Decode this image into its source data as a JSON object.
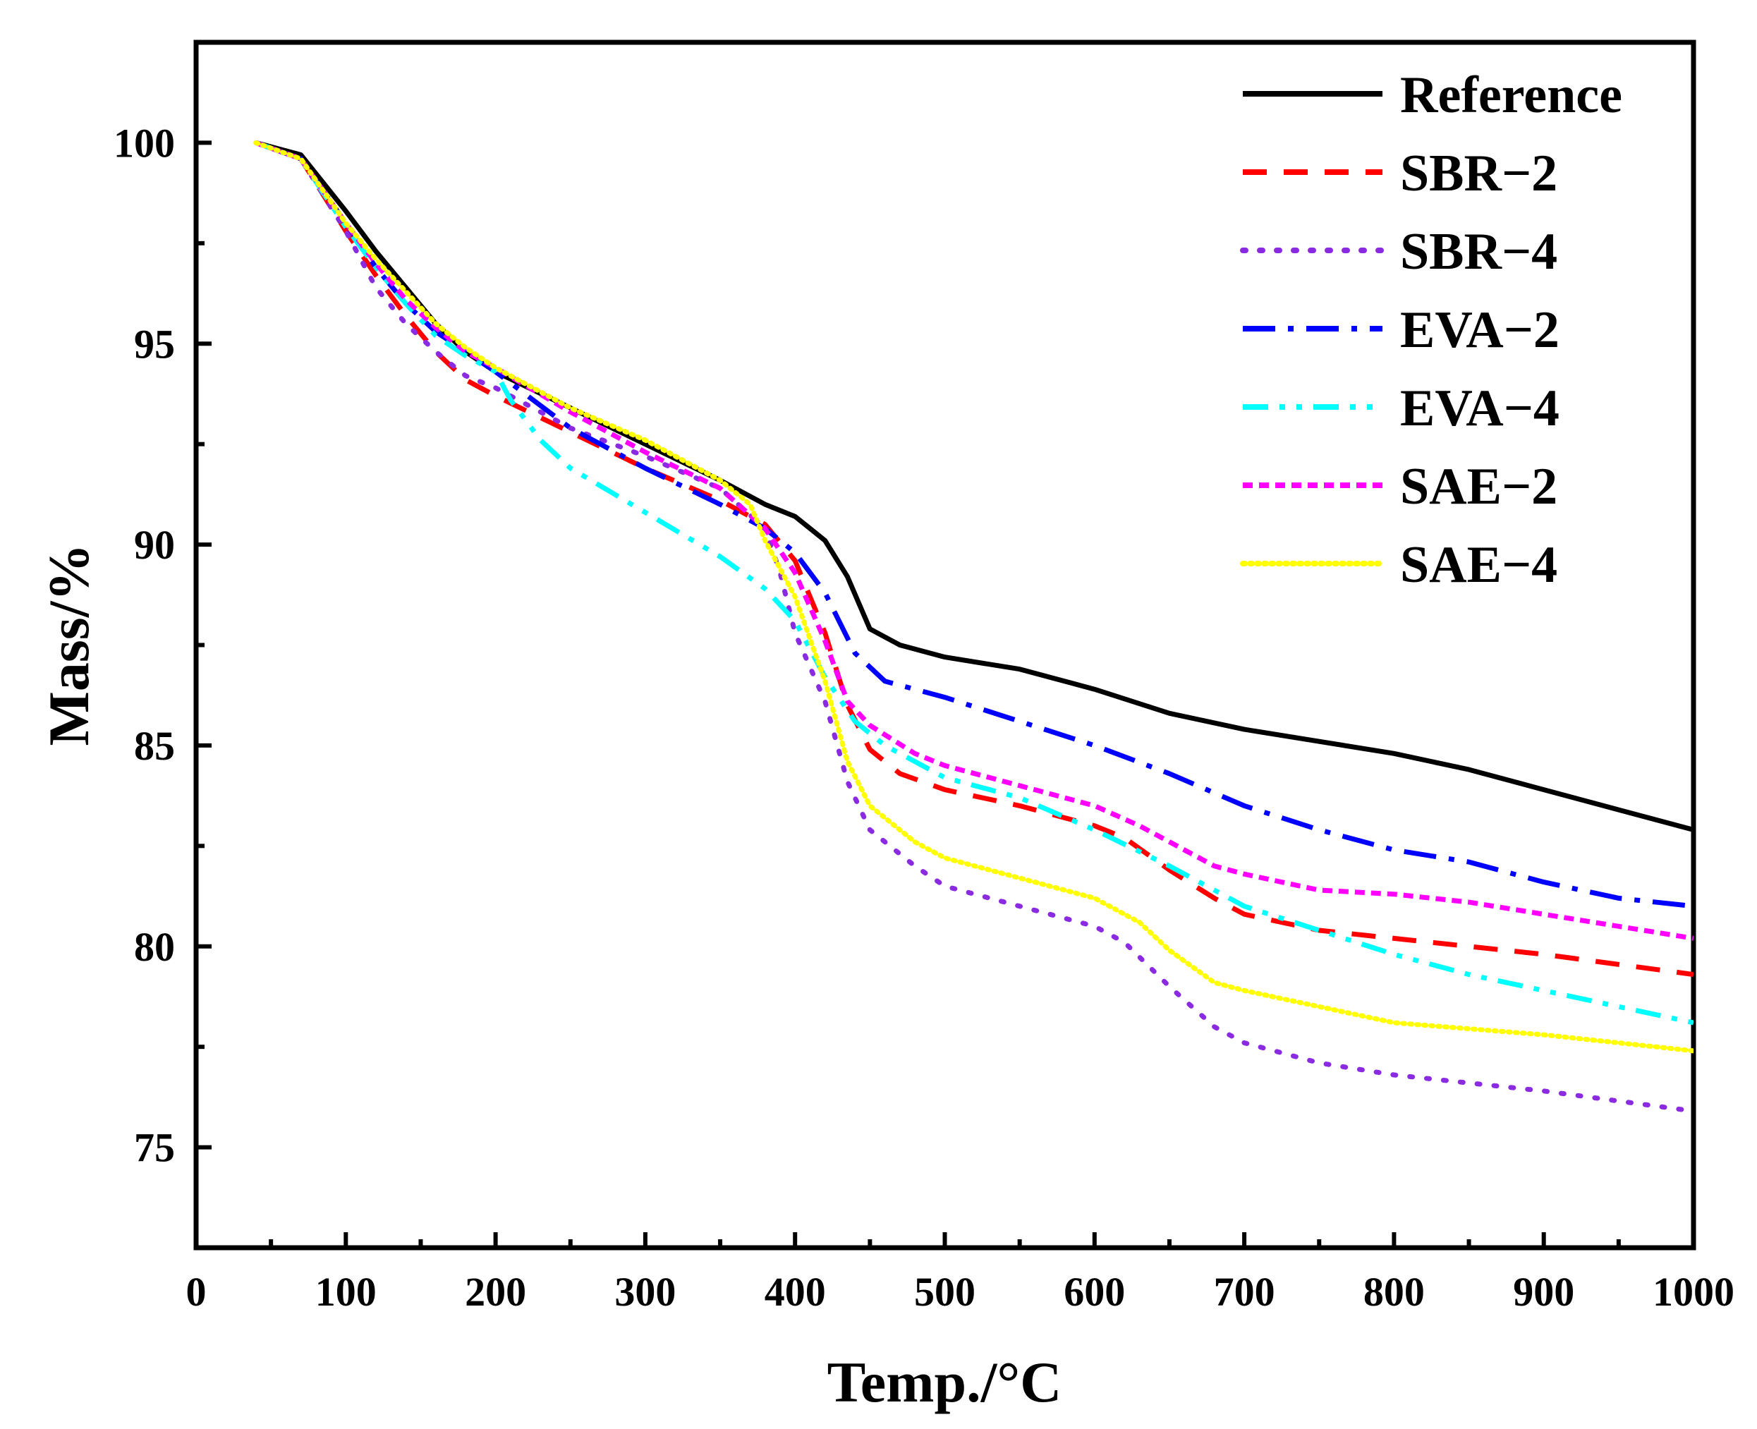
{
  "chart_data": {
    "type": "line",
    "title": "",
    "xlabel": "Temp./°C",
    "ylabel": "Mass/%",
    "xlim": [
      0,
      1000
    ],
    "ylim": [
      72.5,
      102.5
    ],
    "x_ticks": [
      0,
      100,
      200,
      300,
      400,
      500,
      600,
      700,
      800,
      900,
      1000
    ],
    "y_ticks": [
      75,
      80,
      85,
      90,
      95,
      100
    ],
    "x_tick_labels": [
      "0",
      "100",
      "200",
      "300",
      "400",
      "500",
      "600",
      "700",
      "800",
      "900",
      "1000"
    ],
    "y_tick_labels": [
      "75",
      "80",
      "85",
      "90",
      "95",
      "100"
    ],
    "grid": false,
    "legend_position": "top-right",
    "series": [
      {
        "name": "Reference",
        "color": "#000000",
        "style": "solid",
        "points": [
          [
            40,
            100
          ],
          [
            70,
            99.7
          ],
          [
            100,
            98.3
          ],
          [
            120,
            97.3
          ],
          [
            140,
            96.4
          ],
          [
            160,
            95.5
          ],
          [
            180,
            94.8
          ],
          [
            200,
            94.3
          ],
          [
            250,
            93.4
          ],
          [
            300,
            92.5
          ],
          [
            350,
            91.6
          ],
          [
            380,
            91.0
          ],
          [
            400,
            90.7
          ],
          [
            420,
            90.1
          ],
          [
            435,
            89.2
          ],
          [
            450,
            87.9
          ],
          [
            470,
            87.5
          ],
          [
            500,
            87.2
          ],
          [
            550,
            86.9
          ],
          [
            600,
            86.4
          ],
          [
            650,
            85.8
          ],
          [
            700,
            85.4
          ],
          [
            750,
            85.1
          ],
          [
            800,
            84.8
          ],
          [
            850,
            84.4
          ],
          [
            900,
            83.9
          ],
          [
            950,
            83.4
          ],
          [
            1000,
            82.9
          ]
        ]
      },
      {
        "name": "SBR−2",
        "color": "#ff0000",
        "style": "dashed",
        "points": [
          [
            40,
            100
          ],
          [
            70,
            99.6
          ],
          [
            100,
            97.8
          ],
          [
            120,
            96.7
          ],
          [
            140,
            95.7
          ],
          [
            160,
            94.8
          ],
          [
            180,
            94.1
          ],
          [
            200,
            93.7
          ],
          [
            250,
            92.8
          ],
          [
            300,
            91.9
          ],
          [
            350,
            91.1
          ],
          [
            380,
            90.5
          ],
          [
            400,
            89.6
          ],
          [
            420,
            87.8
          ],
          [
            435,
            86.0
          ],
          [
            450,
            84.9
          ],
          [
            470,
            84.3
          ],
          [
            500,
            83.9
          ],
          [
            550,
            83.5
          ],
          [
            600,
            83.0
          ],
          [
            620,
            82.7
          ],
          [
            650,
            81.9
          ],
          [
            680,
            81.2
          ],
          [
            700,
            80.8
          ],
          [
            750,
            80.4
          ],
          [
            800,
            80.2
          ],
          [
            900,
            79.8
          ],
          [
            1000,
            79.3
          ]
        ]
      },
      {
        "name": "SBR−4",
        "color": "#8a2be2",
        "style": "dotted",
        "points": [
          [
            40,
            100
          ],
          [
            70,
            99.6
          ],
          [
            100,
            97.8
          ],
          [
            120,
            96.4
          ],
          [
            140,
            95.5
          ],
          [
            160,
            94.8
          ],
          [
            180,
            94.2
          ],
          [
            200,
            93.9
          ],
          [
            250,
            92.9
          ],
          [
            300,
            92.2
          ],
          [
            350,
            91.4
          ],
          [
            380,
            90.4
          ],
          [
            390,
            89.3
          ],
          [
            400,
            87.8
          ],
          [
            420,
            86.1
          ],
          [
            435,
            84.1
          ],
          [
            450,
            82.9
          ],
          [
            480,
            82.0
          ],
          [
            500,
            81.5
          ],
          [
            550,
            81.0
          ],
          [
            600,
            80.5
          ],
          [
            620,
            80.1
          ],
          [
            650,
            79.0
          ],
          [
            680,
            78.0
          ],
          [
            700,
            77.6
          ],
          [
            750,
            77.1
          ],
          [
            800,
            76.8
          ],
          [
            900,
            76.4
          ],
          [
            1000,
            75.9
          ]
        ]
      },
      {
        "name": "EVA−2",
        "color": "#0000ff",
        "style": "dashdot",
        "points": [
          [
            40,
            100
          ],
          [
            70,
            99.6
          ],
          [
            100,
            98.0
          ],
          [
            120,
            96.9
          ],
          [
            140,
            96.0
          ],
          [
            160,
            95.3
          ],
          [
            180,
            94.8
          ],
          [
            200,
            94.3
          ],
          [
            250,
            92.9
          ],
          [
            300,
            91.9
          ],
          [
            350,
            91.0
          ],
          [
            380,
            90.4
          ],
          [
            400,
            89.8
          ],
          [
            420,
            88.8
          ],
          [
            440,
            87.3
          ],
          [
            460,
            86.6
          ],
          [
            500,
            86.2
          ],
          [
            550,
            85.6
          ],
          [
            600,
            85.0
          ],
          [
            650,
            84.3
          ],
          [
            700,
            83.5
          ],
          [
            750,
            82.9
          ],
          [
            800,
            82.4
          ],
          [
            850,
            82.1
          ],
          [
            900,
            81.6
          ],
          [
            950,
            81.2
          ],
          [
            1000,
            81.0
          ]
        ]
      },
      {
        "name": "EVA−4",
        "color": "#00ffff",
        "style": "dashdotdot",
        "points": [
          [
            40,
            100
          ],
          [
            70,
            99.6
          ],
          [
            100,
            97.9
          ],
          [
            120,
            96.9
          ],
          [
            140,
            96.0
          ],
          [
            160,
            95.2
          ],
          [
            180,
            94.7
          ],
          [
            200,
            94.3
          ],
          [
            210,
            93.6
          ],
          [
            230,
            92.6
          ],
          [
            250,
            91.9
          ],
          [
            300,
            90.8
          ],
          [
            350,
            89.7
          ],
          [
            380,
            88.9
          ],
          [
            400,
            88.1
          ],
          [
            420,
            86.7
          ],
          [
            440,
            85.6
          ],
          [
            460,
            85.0
          ],
          [
            500,
            84.2
          ],
          [
            550,
            83.7
          ],
          [
            600,
            82.9
          ],
          [
            650,
            82.0
          ],
          [
            700,
            81.0
          ],
          [
            750,
            80.4
          ],
          [
            800,
            79.8
          ],
          [
            850,
            79.3
          ],
          [
            900,
            78.9
          ],
          [
            950,
            78.5
          ],
          [
            1000,
            78.1
          ]
        ]
      },
      {
        "name": "SAE−2",
        "color": "#ff00ff",
        "style": "shortdash",
        "points": [
          [
            40,
            100
          ],
          [
            70,
            99.6
          ],
          [
            100,
            98.0
          ],
          [
            120,
            97.0
          ],
          [
            140,
            96.1
          ],
          [
            160,
            95.4
          ],
          [
            180,
            94.8
          ],
          [
            200,
            94.4
          ],
          [
            250,
            93.3
          ],
          [
            300,
            92.3
          ],
          [
            350,
            91.4
          ],
          [
            380,
            90.4
          ],
          [
            400,
            89.3
          ],
          [
            420,
            87.6
          ],
          [
            435,
            86.1
          ],
          [
            450,
            85.5
          ],
          [
            480,
            84.8
          ],
          [
            500,
            84.5
          ],
          [
            550,
            84.0
          ],
          [
            600,
            83.5
          ],
          [
            630,
            83.0
          ],
          [
            650,
            82.6
          ],
          [
            680,
            82.0
          ],
          [
            700,
            81.8
          ],
          [
            750,
            81.4
          ],
          [
            800,
            81.3
          ],
          [
            850,
            81.1
          ],
          [
            900,
            80.8
          ],
          [
            1000,
            80.2
          ]
        ]
      },
      {
        "name": "SAE−4",
        "color": "#ffff00",
        "style": "fine-dotted",
        "points": [
          [
            40,
            100
          ],
          [
            70,
            99.6
          ],
          [
            100,
            98.0
          ],
          [
            120,
            97.1
          ],
          [
            140,
            96.3
          ],
          [
            160,
            95.5
          ],
          [
            180,
            94.9
          ],
          [
            200,
            94.4
          ],
          [
            250,
            93.4
          ],
          [
            300,
            92.6
          ],
          [
            350,
            91.6
          ],
          [
            370,
            91.0
          ],
          [
            380,
            90.1
          ],
          [
            400,
            88.7
          ],
          [
            420,
            86.6
          ],
          [
            435,
            84.6
          ],
          [
            450,
            83.5
          ],
          [
            480,
            82.6
          ],
          [
            500,
            82.2
          ],
          [
            550,
            81.7
          ],
          [
            600,
            81.2
          ],
          [
            630,
            80.6
          ],
          [
            650,
            79.9
          ],
          [
            680,
            79.1
          ],
          [
            700,
            78.9
          ],
          [
            750,
            78.5
          ],
          [
            800,
            78.1
          ],
          [
            900,
            77.8
          ],
          [
            1000,
            77.4
          ]
        ]
      }
    ]
  }
}
